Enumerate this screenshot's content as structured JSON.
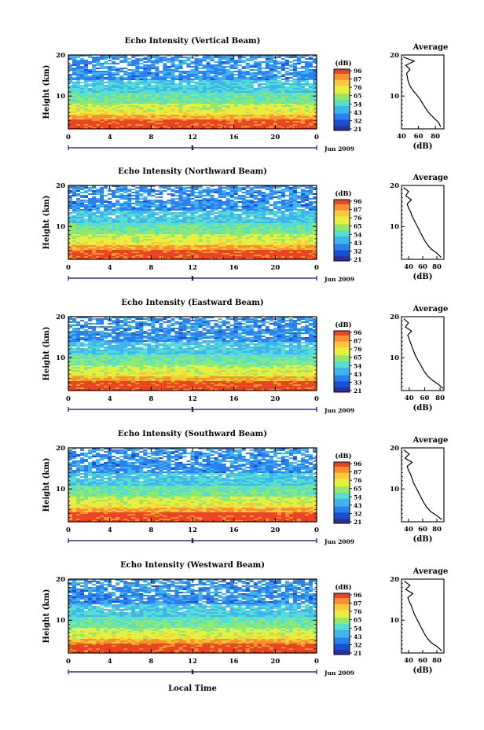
{
  "figure": {
    "x_axis_label": "Local Time",
    "day_label": "1",
    "month_label": "Jun 2009"
  },
  "colors": {
    "scale": [
      "#2e3192",
      "#1b4fd1",
      "#2b7ff0",
      "#3fb5f0",
      "#56dfd0",
      "#8fe870",
      "#e7ef40",
      "#fbc93a",
      "#f8902e",
      "#e94424"
    ]
  },
  "colorbar": {
    "unit": "(dB)",
    "ticks": [
      "96",
      "87",
      "76",
      "65",
      "54",
      "43",
      "32",
      "21"
    ]
  },
  "chart_data": [
    {
      "type": "heatmap",
      "title": "Echo Intensity (Vertical Beam)",
      "ylabel": "Height (km)",
      "x_ticks": [
        "0",
        "4",
        "8",
        "12",
        "16",
        "20",
        "0"
      ],
      "y_ticks": [
        "20",
        "10"
      ],
      "xlim": [
        0,
        24
      ],
      "ylim": [
        2,
        20
      ],
      "colorbar_ticks": [
        "96",
        "87",
        "76",
        "65",
        "54",
        "43",
        "32",
        "21"
      ],
      "profile": {
        "title": "Average",
        "xlabel": "(dB)",
        "x_ticks": [
          "40",
          "60",
          "80"
        ],
        "y_ticks": [
          "20",
          "10"
        ],
        "xlim": [
          40,
          90
        ],
        "ylim": [
          2,
          20
        ],
        "heights": [
          2.5,
          3.5,
          4.5,
          5.5,
          6.5,
          7.5,
          8.5,
          9.5,
          10.5,
          11.5,
          12.5,
          13.5,
          14.5,
          15.5,
          16.5,
          17.5,
          18.5,
          19.5
        ],
        "values": [
          86,
          84,
          79,
          74,
          70,
          67,
          64,
          61,
          57,
          53,
          50,
          48,
          47,
          46,
          50,
          45,
          55,
          42
        ]
      }
    },
    {
      "type": "heatmap",
      "title": "Echo Intensity (Northward Beam)",
      "ylabel": "Height (km)",
      "x_ticks": [
        "0",
        "4",
        "8",
        "12",
        "16",
        "20",
        "0"
      ],
      "y_ticks": [
        "20",
        "10"
      ],
      "xlim": [
        0,
        24
      ],
      "ylim": [
        2,
        20
      ],
      "colorbar_ticks": [
        "96",
        "87",
        "76",
        "65",
        "54",
        "43",
        "32",
        "21"
      ],
      "profile": {
        "title": "Average",
        "xlabel": "(dB)",
        "x_ticks": [
          "40",
          "60",
          "80"
        ],
        "y_ticks": [
          "20",
          "10"
        ],
        "xlim": [
          30,
          90
        ],
        "ylim": [
          2,
          20
        ],
        "heights": [
          2.5,
          3.5,
          4.5,
          5.5,
          6.5,
          7.5,
          8.5,
          9.5,
          10.5,
          11.5,
          12.5,
          13.5,
          14.5,
          15.5,
          16.5,
          17.5,
          18.5,
          19.5
        ],
        "values": [
          86,
          80,
          72,
          67,
          63,
          60,
          57,
          54,
          51,
          48,
          45,
          43,
          40,
          38,
          44,
          36,
          40,
          33
        ]
      }
    },
    {
      "type": "heatmap",
      "title": "Echo Intensity (Eastward Beam)",
      "ylabel": "Height (km)",
      "x_ticks": [
        "0",
        "4",
        "8",
        "12",
        "16",
        "20",
        "0"
      ],
      "y_ticks": [
        "20",
        "10"
      ],
      "xlim": [
        0,
        24
      ],
      "ylim": [
        2,
        20
      ],
      "colorbar_ticks": [
        "96",
        "87",
        "76",
        "65",
        "54",
        "43",
        "33",
        "21"
      ],
      "profile": {
        "title": "Average",
        "xlabel": "(dB)",
        "x_ticks": [
          "40",
          "60",
          "80"
        ],
        "y_ticks": [
          "20",
          "10"
        ],
        "xlim": [
          30,
          85
        ],
        "ylim": [
          2,
          20
        ],
        "heights": [
          2.5,
          3.5,
          4.5,
          5.5,
          6.5,
          7.5,
          8.5,
          9.5,
          10.5,
          11.5,
          12.5,
          13.5,
          14.5,
          15.5,
          16.5,
          17.5,
          18.5,
          19.5
        ],
        "values": [
          84,
          78,
          70,
          64,
          60,
          57,
          54,
          51,
          48,
          46,
          44,
          42,
          40,
          38,
          43,
          35,
          39,
          33
        ]
      }
    },
    {
      "type": "heatmap",
      "title": "Echo Intensity (Southward Beam)",
      "ylabel": "Height (km)",
      "x_ticks": [
        "0",
        "4",
        "8",
        "12",
        "16",
        "20",
        "0"
      ],
      "y_ticks": [
        "20",
        "10"
      ],
      "xlim": [
        0,
        24
      ],
      "ylim": [
        2,
        20
      ],
      "colorbar_ticks": [
        "96",
        "87",
        "76",
        "65",
        "54",
        "43",
        "32",
        "21"
      ],
      "profile": {
        "title": "Average",
        "xlabel": "(dB)",
        "x_ticks": [
          "40",
          "60",
          "80"
        ],
        "y_ticks": [
          "20",
          "10"
        ],
        "xlim": [
          30,
          90
        ],
        "ylim": [
          2,
          20
        ],
        "heights": [
          2.5,
          3.5,
          4.5,
          5.5,
          6.5,
          7.5,
          8.5,
          9.5,
          10.5,
          11.5,
          12.5,
          13.5,
          14.5,
          15.5,
          16.5,
          17.5,
          18.5,
          19.5
        ],
        "values": [
          87,
          80,
          71,
          66,
          62,
          59,
          56,
          53,
          50,
          47,
          45,
          43,
          40,
          38,
          45,
          35,
          41,
          33
        ]
      }
    },
    {
      "type": "heatmap",
      "title": "Echo Intensity (Westward Beam)",
      "ylabel": "Height (km)",
      "x_ticks": [
        "0",
        "4",
        "8",
        "12",
        "16",
        "20",
        "0"
      ],
      "y_ticks": [
        "20",
        "10"
      ],
      "xlim": [
        0,
        24
      ],
      "ylim": [
        2,
        20
      ],
      "colorbar_ticks": [
        "96",
        "87",
        "76",
        "65",
        "54",
        "43",
        "32",
        "21"
      ],
      "profile": {
        "title": "Average",
        "xlabel": "(dB)",
        "x_ticks": [
          "40",
          "60",
          "80"
        ],
        "y_ticks": [
          "20",
          "10"
        ],
        "xlim": [
          30,
          90
        ],
        "ylim": [
          2,
          20
        ],
        "heights": [
          2.5,
          3.5,
          4.5,
          5.5,
          6.5,
          7.5,
          8.5,
          9.5,
          10.5,
          11.5,
          12.5,
          13.5,
          14.5,
          15.5,
          16.5,
          17.5,
          18.5,
          19.5
        ],
        "values": [
          87,
          81,
          72,
          67,
          63,
          60,
          57,
          54,
          51,
          48,
          46,
          44,
          41,
          39,
          46,
          36,
          42,
          34
        ]
      }
    }
  ]
}
